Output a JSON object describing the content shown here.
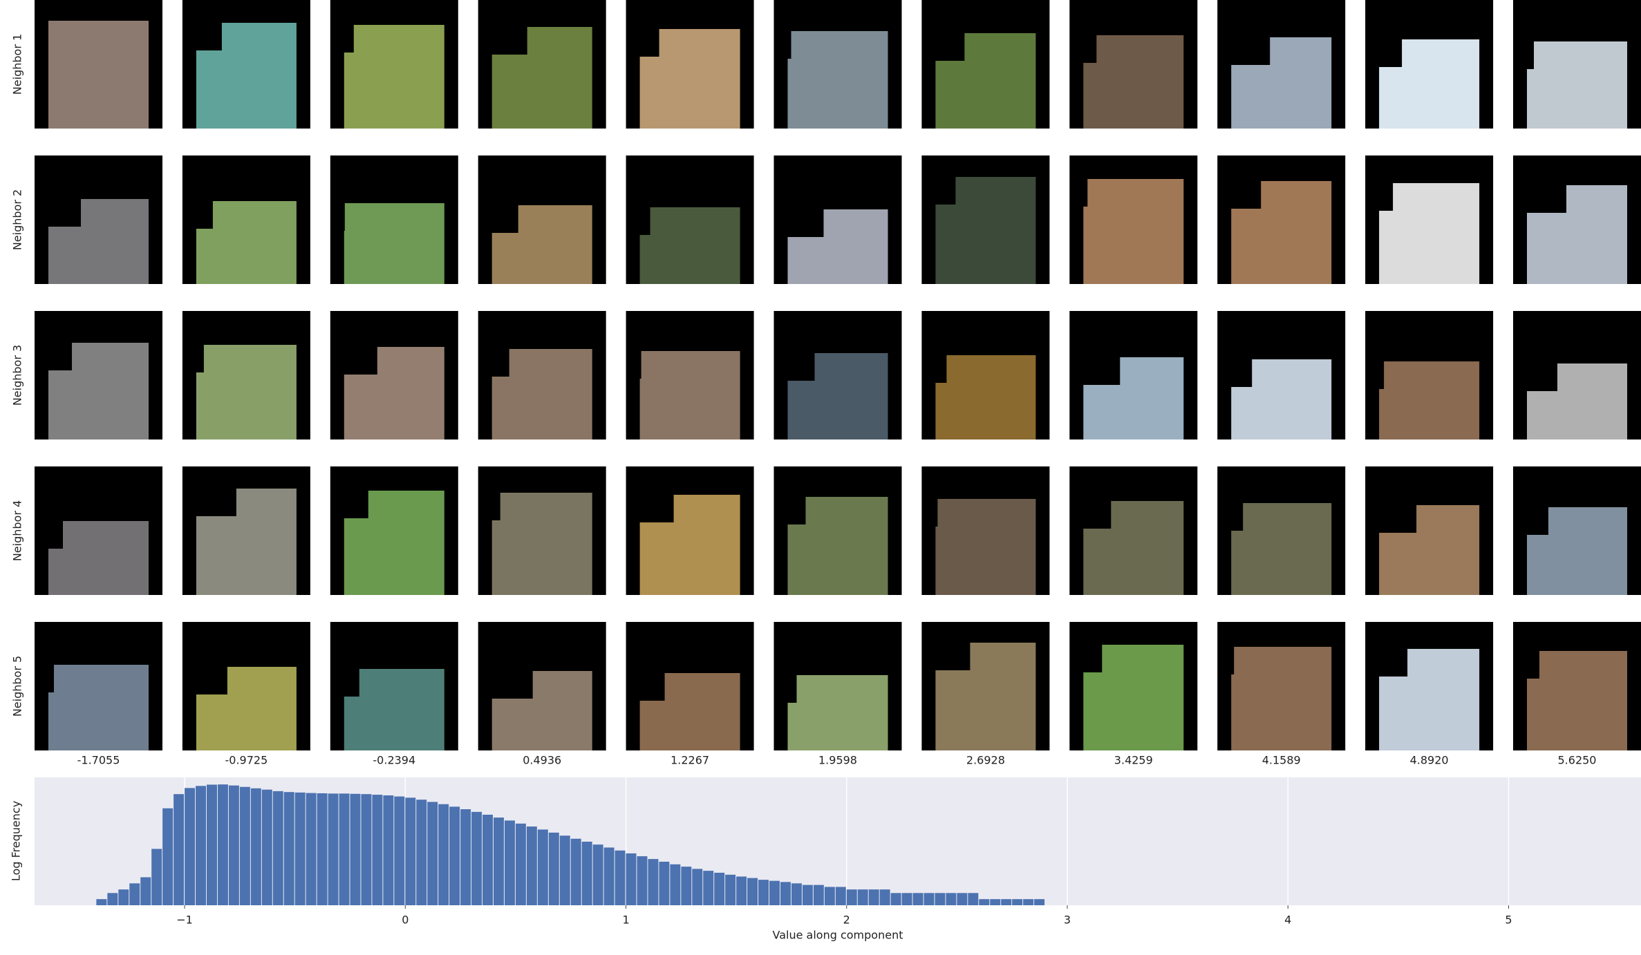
{
  "patch_grid": {
    "row_labels": [
      "Neighbor 1",
      "Neighbor 2",
      "Neighbor 3",
      "Neighbor 4",
      "Neighbor 5"
    ],
    "column_labels": [
      "-1.7055",
      "-0.9725",
      "-0.2394",
      "0.4936",
      "1.2267",
      "1.9598",
      "2.6928",
      "3.4259",
      "4.1589",
      "4.8920",
      "5.6250"
    ]
  },
  "chart_data": {
    "type": "histogram",
    "xlabel": "Value along component",
    "ylabel": "Log Frequency",
    "bins": [
      -1.4,
      -1.35,
      -1.3,
      -1.25,
      -1.2,
      -1.15,
      -1.1,
      -1.05,
      -1.0,
      -0.95,
      -0.9,
      -0.85,
      -0.8,
      -0.75,
      -0.7,
      -0.65,
      -0.6,
      -0.55,
      -0.5,
      -0.45,
      -0.4,
      -0.35,
      -0.3,
      -0.25,
      -0.2,
      -0.15,
      -0.1,
      -0.05,
      0.0,
      0.05,
      0.1,
      0.15,
      0.2,
      0.25,
      0.3,
      0.35,
      0.4,
      0.45,
      0.5,
      0.55,
      0.6,
      0.65,
      0.7,
      0.75,
      0.8,
      0.85,
      0.9,
      0.95,
      1.0,
      1.05,
      1.1,
      1.15,
      1.2,
      1.25,
      1.3,
      1.35,
      1.4,
      1.45,
      1.5,
      1.55,
      1.6,
      1.65,
      1.7,
      1.75,
      1.8,
      1.85,
      1.9,
      1.95,
      2.0,
      2.05,
      2.1,
      2.15,
      2.2,
      2.25,
      2.3,
      2.35,
      2.4,
      2.45,
      2.5,
      2.55,
      2.6,
      2.65,
      2.7,
      2.75,
      2.8,
      2.85,
      2.9
    ],
    "values": [
      1,
      2,
      3,
      6,
      12,
      300,
      30000,
      150000,
      300000,
      380000,
      440000,
      450000,
      400000,
      340000,
      290000,
      250000,
      210000,
      190000,
      180000,
      170000,
      165000,
      160000,
      160000,
      155000,
      150000,
      140000,
      130000,
      115000,
      100000,
      80000,
      62000,
      48000,
      36000,
      27000,
      20000,
      14500,
      10500,
      7500,
      5300,
      3800,
      2700,
      1900,
      1350,
      950,
      680,
      490,
      350,
      250,
      180,
      130,
      95,
      70,
      52,
      40,
      31,
      25,
      20,
      16,
      13,
      11,
      9,
      8,
      7,
      6,
      5,
      5,
      4,
      4,
      3,
      3,
      3,
      3,
      2,
      2,
      2,
      2,
      2,
      2,
      2,
      2,
      1,
      1,
      1,
      1,
      1,
      1
    ],
    "color": "#4c72b0",
    "xlim": [
      -1.68,
      5.6
    ],
    "xticks": [
      {
        "value": -1,
        "label": "−1"
      },
      0,
      1,
      2,
      3,
      4,
      5
    ],
    "ylim": [
      0.5,
      1000000
    ],
    "log_scale": true,
    "grid": true
  }
}
